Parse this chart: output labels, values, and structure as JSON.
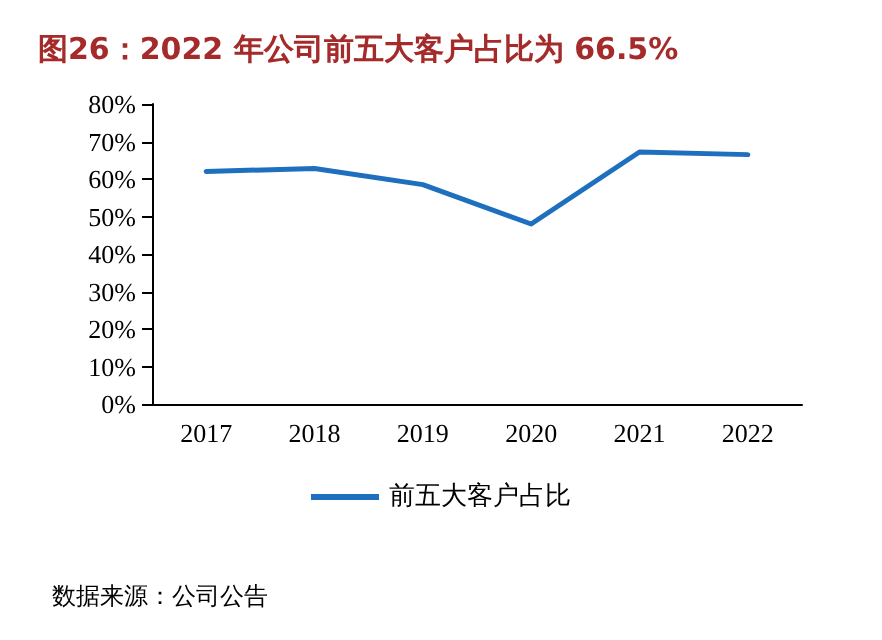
{
  "chart_data": {
    "type": "line",
    "title": "图26：2022 年公司前五大客户占比为 66.5%",
    "categories": [
      "2017",
      "2018",
      "2019",
      "2020",
      "2021",
      "2022"
    ],
    "series": [
      {
        "name": "前五大客户占比",
        "color": "#1f6fbf",
        "values": [
          62,
          62.8,
          58.5,
          48,
          67.2,
          66.5
        ]
      }
    ],
    "ylim": [
      0,
      80
    ],
    "yticks": [
      {
        "value": 0,
        "label": "0%"
      },
      {
        "value": 10,
        "label": "10%"
      },
      {
        "value": 20,
        "label": "20%"
      },
      {
        "value": 30,
        "label": "30%"
      },
      {
        "value": 40,
        "label": "40%"
      },
      {
        "value": 50,
        "label": "50%"
      },
      {
        "value": 60,
        "label": "60%"
      },
      {
        "value": 70,
        "label": "70%"
      },
      {
        "value": 80,
        "label": "80%"
      }
    ],
    "grid": false,
    "legend": "bottom",
    "marker": "none",
    "line_style": "solid",
    "annotations": [
      "数据来源：公司公告"
    ]
  }
}
